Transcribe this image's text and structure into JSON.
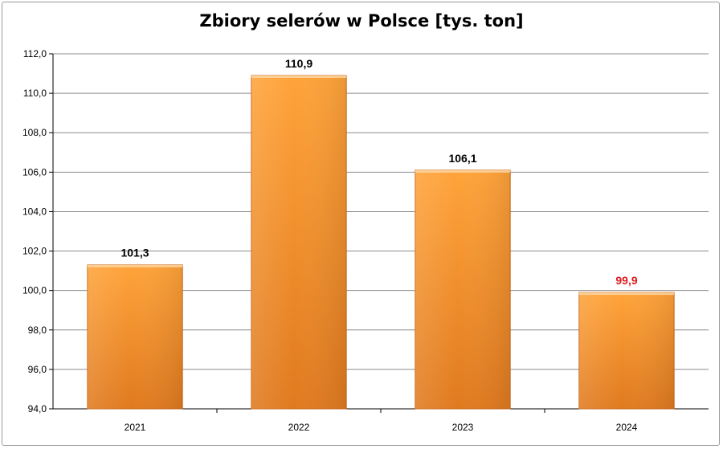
{
  "chart_data": {
    "type": "bar",
    "title": "Zbiory selerów w Polsce [tys. ton]",
    "categories": [
      "2021",
      "2022",
      "2023",
      "2024"
    ],
    "values": [
      101.3,
      110.9,
      106.1,
      99.9
    ],
    "value_labels": [
      "101,3",
      "110,9",
      "106,1",
      "99,9"
    ],
    "label_colors": [
      "#000000",
      "#000000",
      "#000000",
      "#e0191e"
    ],
    "ylim": [
      94,
      112
    ],
    "yticks": [
      94,
      96,
      98,
      100,
      102,
      104,
      106,
      108,
      110,
      112
    ],
    "ytick_labels": [
      "94,0",
      "96,0",
      "98,0",
      "100,0",
      "102,0",
      "104,0",
      "106,0",
      "108,0",
      "110,0",
      "112,0"
    ],
    "grid": true,
    "legend": "none",
    "xlabel": "",
    "ylabel": "",
    "colors": {
      "bar_top": "#ffa33a",
      "bar_bottom": "#e07a1f",
      "bar_edge": "#c8691a",
      "grid": "#8c8c8c"
    }
  }
}
